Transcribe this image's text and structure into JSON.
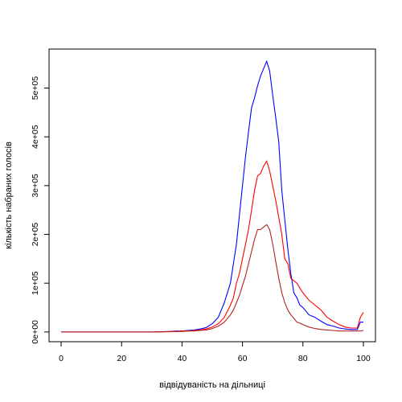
{
  "chart_data": {
    "type": "line",
    "title": "",
    "xlabel": "відвідуваність на дільниці",
    "ylabel": "кількість набраних голосів",
    "xlim": [
      -4,
      104
    ],
    "ylim": [
      -20000,
      580000
    ],
    "xticks": [
      {
        "value": 0,
        "label": "0"
      },
      {
        "value": 20,
        "label": "20"
      },
      {
        "value": 40,
        "label": "40"
      },
      {
        "value": 60,
        "label": "60"
      },
      {
        "value": 80,
        "label": "80"
      },
      {
        "value": 100,
        "label": "100"
      }
    ],
    "yticks": [
      {
        "value": 0,
        "label": "0e+00"
      },
      {
        "value": 100000,
        "label": "1e+05"
      },
      {
        "value": 200000,
        "label": "2e+05"
      },
      {
        "value": 300000,
        "label": "3e+05"
      },
      {
        "value": 400000,
        "label": "4e+05"
      },
      {
        "value": 500000,
        "label": "5e+05"
      }
    ],
    "grid": false,
    "legend": "none",
    "series": [
      {
        "color": "#0000ff",
        "x": [
          0,
          10,
          20,
          30,
          36,
          38,
          40,
          42,
          44,
          46,
          48,
          50,
          52,
          54,
          56,
          57,
          58,
          59,
          60,
          61,
          62,
          63,
          64,
          65,
          66,
          67,
          68,
          69,
          70,
          71,
          72,
          73,
          74,
          75,
          76,
          77,
          78,
          79,
          80,
          82,
          84,
          86,
          88,
          90,
          92,
          94,
          96,
          98,
          99,
          100
        ],
        "y": [
          0,
          0,
          0,
          0,
          1000,
          2000,
          2000,
          3000,
          4000,
          6000,
          9000,
          17000,
          30000,
          60000,
          100000,
          140000,
          180000,
          240000,
          300000,
          360000,
          410000,
          460000,
          480000,
          505000,
          525000,
          540000,
          555000,
          535000,
          485000,
          440000,
          390000,
          290000,
          230000,
          170000,
          120000,
          80000,
          70000,
          55000,
          50000,
          35000,
          30000,
          22000,
          15000,
          12000,
          8000,
          6000,
          5000,
          5000,
          20000,
          20000
        ]
      },
      {
        "color": "#ff0000",
        "x": [
          0,
          10,
          20,
          30,
          36,
          38,
          40,
          42,
          44,
          46,
          48,
          50,
          52,
          54,
          56,
          57,
          58,
          59,
          60,
          61,
          62,
          63,
          64,
          65,
          66,
          67,
          68,
          69,
          70,
          71,
          72,
          73,
          74,
          75,
          76,
          77,
          78,
          79,
          80,
          82,
          84,
          86,
          88,
          90,
          92,
          94,
          96,
          98,
          99,
          100
        ],
        "y": [
          0,
          0,
          0,
          0,
          1000,
          1000,
          2000,
          2000,
          3000,
          4000,
          6000,
          10000,
          17000,
          30000,
          55000,
          70000,
          100000,
          120000,
          150000,
          180000,
          210000,
          250000,
          290000,
          320000,
          325000,
          340000,
          350000,
          330000,
          300000,
          270000,
          235000,
          200000,
          150000,
          140000,
          110000,
          105000,
          100000,
          90000,
          80000,
          65000,
          55000,
          45000,
          30000,
          22000,
          15000,
          10000,
          8000,
          8000,
          30000,
          40000
        ]
      },
      {
        "color": "#b22222",
        "x": [
          0,
          10,
          20,
          30,
          36,
          38,
          40,
          42,
          44,
          46,
          48,
          50,
          52,
          54,
          56,
          57,
          58,
          59,
          60,
          61,
          62,
          63,
          64,
          65,
          66,
          67,
          68,
          69,
          70,
          71,
          72,
          73,
          74,
          75,
          76,
          77,
          78,
          79,
          80,
          82,
          84,
          86,
          88,
          90,
          92,
          94,
          96,
          98,
          99,
          100
        ],
        "y": [
          0,
          0,
          0,
          0,
          500,
          1000,
          1000,
          2000,
          2000,
          3000,
          4000,
          7000,
          12000,
          20000,
          35000,
          45000,
          60000,
          75000,
          95000,
          115000,
          140000,
          165000,
          190000,
          210000,
          210000,
          215000,
          220000,
          210000,
          180000,
          145000,
          110000,
          80000,
          60000,
          45000,
          35000,
          28000,
          20000,
          18000,
          15000,
          10000,
          7000,
          5000,
          4000,
          3000,
          2000,
          2000,
          2000,
          2000,
          2000,
          3000
        ]
      }
    ]
  }
}
